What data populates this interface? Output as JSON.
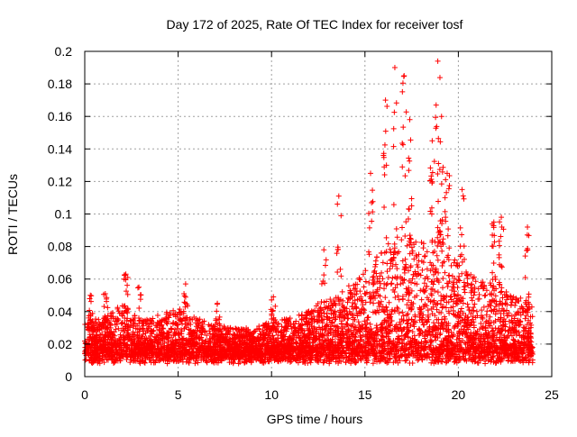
{
  "chart_data": {
    "type": "scatter",
    "title": "Day 172 of 2025, Rate Of TEC Index for receiver tosf",
    "xlabel": "GPS time / hours",
    "ylabel": "ROTI / TECUs",
    "xlim": [
      0,
      25
    ],
    "ylim": [
      0,
      0.2
    ],
    "xticks": [
      0,
      5,
      10,
      15,
      20,
      25
    ],
    "yticks": [
      0,
      0.02,
      0.04,
      0.06,
      0.08,
      0.1,
      0.12,
      0.14,
      0.16,
      0.18,
      0.2
    ],
    "xtick_labels": [
      "0",
      "5",
      "10",
      "15",
      "20",
      "25"
    ],
    "ytick_labels": [
      "0",
      "0.02",
      "0.04",
      "0.06",
      "0.08",
      "0.1",
      "0.12",
      "0.14",
      "0.16",
      "0.18",
      "0.2"
    ],
    "grid": true,
    "marker": "+",
    "color": "#ff0000",
    "series": [
      {
        "name": "ROTI",
        "x_range": [
          0,
          24
        ],
        "envelope_hours": [
          0,
          1,
          2,
          3,
          4,
          5,
          6,
          7,
          8,
          9,
          10,
          11,
          12,
          13,
          14,
          15,
          16,
          17,
          18,
          19,
          20,
          21,
          22,
          23,
          24
        ],
        "typical_max": [
          0.035,
          0.036,
          0.045,
          0.035,
          0.038,
          0.042,
          0.036,
          0.032,
          0.03,
          0.03,
          0.034,
          0.036,
          0.042,
          0.048,
          0.055,
          0.065,
          0.08,
          0.09,
          0.085,
          0.09,
          0.07,
          0.06,
          0.06,
          0.05,
          0.045
        ],
        "peaks": [
          {
            "x": 0.3,
            "y": 0.05
          },
          {
            "x": 1.1,
            "y": 0.051
          },
          {
            "x": 2.2,
            "y": 0.063
          },
          {
            "x": 2.9,
            "y": 0.055
          },
          {
            "x": 5.4,
            "y": 0.057
          },
          {
            "x": 7.1,
            "y": 0.045
          },
          {
            "x": 10.1,
            "y": 0.049
          },
          {
            "x": 12.8,
            "y": 0.078
          },
          {
            "x": 13.6,
            "y": 0.111
          },
          {
            "x": 15.3,
            "y": 0.125
          },
          {
            "x": 16.1,
            "y": 0.17
          },
          {
            "x": 16.6,
            "y": 0.19
          },
          {
            "x": 17.1,
            "y": 0.185
          },
          {
            "x": 17.4,
            "y": 0.158
          },
          {
            "x": 18.6,
            "y": 0.145
          },
          {
            "x": 18.9,
            "y": 0.194
          },
          {
            "x": 19.1,
            "y": 0.16
          },
          {
            "x": 19.4,
            "y": 0.125
          },
          {
            "x": 20.2,
            "y": 0.115
          },
          {
            "x": 21.9,
            "y": 0.095
          },
          {
            "x": 22.3,
            "y": 0.098
          },
          {
            "x": 23.7,
            "y": 0.092
          }
        ]
      }
    ]
  }
}
